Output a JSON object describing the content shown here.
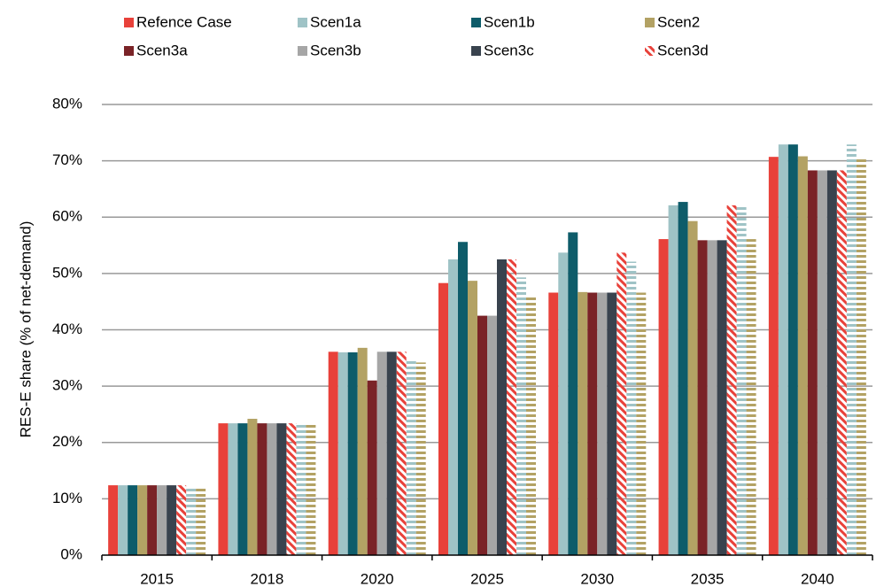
{
  "chart_data": {
    "type": "bar",
    "y_label": "RES-E share (% of net-demand)",
    "categories": [
      "2015",
      "2018",
      "2020",
      "2025",
      "2030",
      "2035",
      "2040"
    ],
    "series": [
      {
        "name": "Refence Case",
        "color": "#e8413a",
        "values": [
          12.4,
          23.4,
          36.1,
          48.3,
          46.6,
          56.1,
          70.7
        ]
      },
      {
        "name": "Scen1a",
        "color": "#9fc3c6",
        "values": [
          12.4,
          23.4,
          36.0,
          52.5,
          53.7,
          62.1,
          72.9
        ]
      },
      {
        "name": "Scen1b",
        "color": "#0e5c6a",
        "values": [
          12.4,
          23.4,
          36.0,
          55.6,
          57.3,
          62.7,
          72.9
        ]
      },
      {
        "name": "Scen2",
        "color": "#b3a264",
        "values": [
          12.4,
          24.2,
          36.8,
          48.7,
          46.7,
          59.3,
          70.8
        ]
      },
      {
        "name": "Scen3a",
        "color": "#7a2327",
        "values": [
          12.4,
          23.4,
          31.0,
          42.5,
          46.6,
          55.9,
          68.3
        ]
      },
      {
        "name": "Scen3b",
        "color": "#a6a6a6",
        "values": [
          12.4,
          23.4,
          36.1,
          42.5,
          46.6,
          55.9,
          68.3
        ]
      },
      {
        "name": "Scen3c",
        "color": "#39434e",
        "values": [
          12.4,
          23.4,
          36.1,
          52.5,
          46.6,
          55.9,
          68.3
        ]
      },
      {
        "name": "Scen3d",
        "color": "#e8413a",
        "pattern": "diagonal",
        "values": [
          12.4,
          23.4,
          36.1,
          52.5,
          53.7,
          62.1,
          68.3
        ]
      },
      {
        "color": "#9fc3c6",
        "pattern": "horizontal",
        "values": [
          12.2,
          23.4,
          34.5,
          49.3,
          52.1,
          62.1,
          72.9
        ]
      },
      {
        "color": "#b3a264",
        "pattern": "horizontal",
        "values": [
          12.2,
          23.4,
          34.2,
          46.0,
          46.6,
          56.1,
          70.7
        ]
      }
    ],
    "ylim": [
      0,
      80
    ],
    "yticks": [
      {
        "value": 0,
        "label": "0%"
      },
      {
        "value": 10,
        "label": "10%"
      },
      {
        "value": 20,
        "label": "20%"
      },
      {
        "value": 30,
        "label": "30%"
      },
      {
        "value": 40,
        "label": "40%"
      },
      {
        "value": 50,
        "label": "50%"
      },
      {
        "value": 60,
        "label": "60%"
      },
      {
        "value": 70,
        "label": "70%"
      },
      {
        "value": 80,
        "label": "80%"
      }
    ],
    "grid": true
  }
}
